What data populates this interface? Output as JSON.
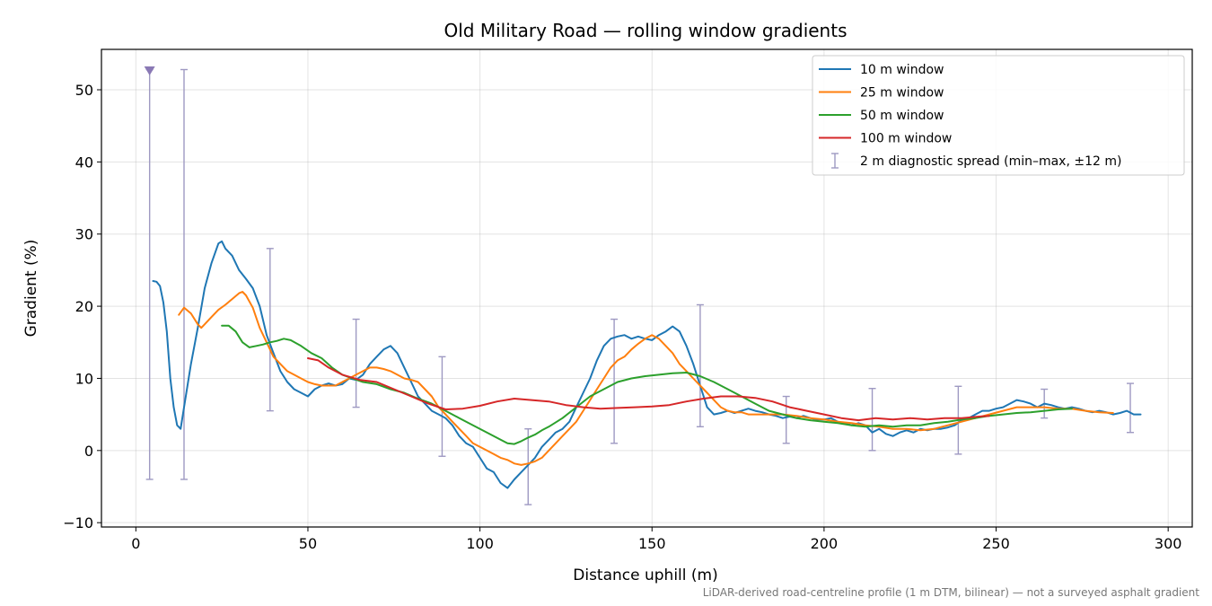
{
  "chart_data": {
    "type": "line",
    "title": "Old Military Road — rolling window gradients",
    "xlabel": "Distance uphill (m)",
    "ylabel": "Gradient (%)",
    "footnote": "LiDAR-derived road-centreline profile (1 m DTM, bilinear) — not a surveyed asphalt gradient",
    "xlim": [
      -10,
      307
    ],
    "ylim": [
      -10.6,
      55.6
    ],
    "xticks": [
      0,
      50,
      100,
      150,
      200,
      250,
      300
    ],
    "xtick_labels": [
      "0",
      "50",
      "100",
      "150",
      "200",
      "250",
      "300"
    ],
    "yticks": [
      -10,
      0,
      10,
      20,
      30,
      40,
      50
    ],
    "ytick_labels": [
      "−10",
      "0",
      "10",
      "20",
      "30",
      "40",
      "50"
    ],
    "grid": true,
    "legend_position": "top-right",
    "series": [
      {
        "name": "10 m window",
        "color": "#1f77b4",
        "x": [
          5,
          6,
          7,
          8,
          9,
          10,
          11,
          12,
          13,
          14,
          16,
          18,
          20,
          22,
          24,
          25,
          26,
          28,
          30,
          32,
          34,
          36,
          38,
          40,
          42,
          44,
          46,
          48,
          50,
          52,
          54,
          56,
          58,
          60,
          62,
          64,
          66,
          68,
          70,
          72,
          74,
          76,
          78,
          80,
          82,
          84,
          86,
          88,
          90,
          92,
          94,
          96,
          98,
          100,
          102,
          104,
          106,
          108,
          110,
          112,
          114,
          116,
          118,
          120,
          122,
          124,
          126,
          128,
          130,
          132,
          134,
          136,
          138,
          140,
          142,
          144,
          146,
          148,
          150,
          152,
          154,
          156,
          158,
          160,
          162,
          164,
          166,
          168,
          170,
          172,
          174,
          176,
          178,
          180,
          182,
          184,
          186,
          188,
          190,
          192,
          194,
          196,
          198,
          200,
          202,
          204,
          206,
          208,
          210,
          212,
          214,
          216,
          218,
          220,
          222,
          224,
          226,
          228,
          230,
          232,
          234,
          236,
          238,
          240,
          242,
          244,
          246,
          248,
          250,
          252,
          254,
          256,
          258,
          260,
          262,
          264,
          266,
          268,
          270,
          272,
          274,
          276,
          278,
          280,
          282,
          284,
          286,
          288,
          290,
          292
        ],
        "values": [
          23.5,
          23.4,
          22.8,
          20.5,
          16.5,
          10.0,
          6.0,
          3.5,
          3.0,
          6.0,
          12.0,
          17.0,
          22.5,
          26.0,
          28.7,
          29.0,
          28.0,
          27.0,
          25.0,
          23.8,
          22.5,
          20.0,
          16.0,
          13.5,
          11.0,
          9.5,
          8.5,
          8.0,
          7.5,
          8.5,
          9.0,
          9.3,
          9.0,
          9.2,
          10.0,
          9.8,
          10.5,
          12.0,
          13.0,
          14.0,
          14.5,
          13.5,
          11.5,
          9.5,
          7.5,
          6.5,
          5.5,
          5.0,
          4.5,
          3.5,
          2.0,
          1.0,
          0.5,
          -1.0,
          -2.5,
          -3.0,
          -4.5,
          -5.2,
          -4.0,
          -3.0,
          -2.0,
          -1.0,
          0.5,
          1.5,
          2.5,
          3.0,
          4.0,
          6.0,
          8.0,
          10.0,
          12.5,
          14.5,
          15.5,
          15.8,
          16.0,
          15.5,
          15.8,
          15.5,
          15.3,
          16.0,
          16.5,
          17.2,
          16.5,
          14.5,
          12.0,
          9.0,
          6.0,
          5.0,
          5.2,
          5.5,
          5.2,
          5.5,
          5.8,
          5.5,
          5.3,
          5.0,
          4.8,
          4.5,
          4.7,
          4.5,
          4.8,
          4.5,
          4.3,
          4.3,
          4.5,
          4.0,
          3.8,
          3.5,
          3.8,
          3.5,
          2.5,
          3.0,
          2.3,
          2.0,
          2.5,
          2.8,
          2.5,
          3.0,
          2.8,
          3.0,
          3.0,
          3.2,
          3.5,
          4.2,
          4.5,
          5.0,
          5.5,
          5.5,
          5.8,
          6.0,
          6.5,
          7.0,
          6.8,
          6.5,
          6.0,
          6.5,
          6.3,
          6.0,
          5.8,
          6.0,
          5.8,
          5.5,
          5.3,
          5.5,
          5.3,
          5.0,
          5.2,
          5.5,
          5.0,
          5.0
        ]
      },
      {
        "name": "25 m window",
        "color": "#ff7f0e",
        "x": [
          12.5,
          14,
          16,
          18,
          19,
          20,
          22,
          24,
          26,
          28,
          30,
          31,
          32,
          34,
          36,
          38,
          40,
          42,
          44,
          46,
          48,
          50,
          52,
          54,
          56,
          58,
          60,
          62,
          64,
          66,
          68,
          70,
          72,
          74,
          76,
          78,
          80,
          82,
          84,
          86,
          88,
          90,
          92,
          94,
          96,
          98,
          100,
          102,
          104,
          106,
          108,
          110,
          112,
          114,
          116,
          118,
          120,
          122,
          124,
          126,
          128,
          130,
          132,
          134,
          136,
          138,
          140,
          142,
          144,
          146,
          148,
          150,
          152,
          154,
          156,
          158,
          160,
          162,
          164,
          166,
          168,
          170,
          172,
          174,
          176,
          178,
          180,
          184,
          188,
          192,
          196,
          200,
          204,
          208,
          212,
          216,
          220,
          224,
          228,
          232,
          236,
          240,
          244,
          248,
          252,
          256,
          260,
          264,
          268,
          272,
          276,
          280,
          284
        ],
        "values": [
          18.8,
          19.8,
          19.0,
          17.5,
          17.0,
          17.5,
          18.5,
          19.5,
          20.2,
          21.0,
          21.8,
          22.0,
          21.5,
          19.8,
          17.0,
          15.0,
          13.0,
          12.0,
          11.0,
          10.5,
          10.0,
          9.5,
          9.2,
          9.0,
          9.0,
          9.0,
          9.5,
          10.0,
          10.5,
          11.0,
          11.5,
          11.5,
          11.3,
          11.0,
          10.5,
          10.0,
          9.8,
          9.5,
          8.5,
          7.5,
          6.0,
          5.0,
          4.0,
          3.0,
          2.0,
          1.0,
          0.5,
          0.0,
          -0.5,
          -1.0,
          -1.3,
          -1.8,
          -2.0,
          -1.8,
          -1.5,
          -1.0,
          0.0,
          1.0,
          2.0,
          3.0,
          4.0,
          5.5,
          7.0,
          8.5,
          10.0,
          11.5,
          12.5,
          13.0,
          14.0,
          14.8,
          15.5,
          16.0,
          15.5,
          14.5,
          13.5,
          12.0,
          11.0,
          10.0,
          9.0,
          8.0,
          7.0,
          6.0,
          5.5,
          5.3,
          5.3,
          5.0,
          5.0,
          5.0,
          5.0,
          4.8,
          4.5,
          4.3,
          4.0,
          3.8,
          3.5,
          3.3,
          3.0,
          3.0,
          2.8,
          3.0,
          3.5,
          4.0,
          4.5,
          5.0,
          5.5,
          6.0,
          6.0,
          6.0,
          5.8,
          5.8,
          5.5,
          5.3,
          5.2
        ]
      },
      {
        "name": "50 m window",
        "color": "#2ca02c",
        "x": [
          25,
          27,
          29,
          31,
          33,
          35,
          37,
          39,
          41,
          43,
          45,
          48,
          51,
          54,
          57,
          60,
          63,
          66,
          70,
          74,
          78,
          82,
          86,
          90,
          94,
          98,
          102,
          106,
          108,
          110,
          112,
          114,
          116,
          118,
          120,
          124,
          128,
          132,
          136,
          140,
          144,
          148,
          152,
          156,
          160,
          164,
          168,
          172,
          176,
          180,
          184,
          188,
          192,
          196,
          200,
          204,
          208,
          212,
          216,
          220,
          224,
          228,
          232,
          236,
          240,
          244,
          248,
          252,
          256,
          260,
          264,
          268,
          272
        ],
        "values": [
          17.3,
          17.3,
          16.5,
          15.0,
          14.3,
          14.5,
          14.7,
          15.0,
          15.2,
          15.5,
          15.3,
          14.5,
          13.5,
          12.8,
          11.5,
          10.5,
          10.0,
          9.5,
          9.2,
          8.5,
          8.0,
          7.2,
          6.5,
          5.5,
          4.5,
          3.5,
          2.5,
          1.5,
          1.0,
          0.9,
          1.3,
          1.8,
          2.2,
          2.8,
          3.3,
          4.5,
          6.0,
          7.5,
          8.5,
          9.5,
          10.0,
          10.3,
          10.5,
          10.7,
          10.8,
          10.3,
          9.5,
          8.5,
          7.5,
          6.5,
          5.5,
          5.0,
          4.5,
          4.2,
          4.0,
          3.8,
          3.5,
          3.3,
          3.5,
          3.3,
          3.5,
          3.5,
          3.8,
          4.0,
          4.3,
          4.5,
          4.8,
          5.0,
          5.2,
          5.3,
          5.5,
          5.7,
          5.8
        ]
      },
      {
        "name": "100 m window",
        "color": "#d62728",
        "x": [
          50,
          53,
          56,
          60,
          65,
          70,
          75,
          80,
          85,
          90,
          95,
          100,
          105,
          110,
          115,
          120,
          125,
          130,
          135,
          140,
          145,
          150,
          155,
          160,
          165,
          170,
          175,
          180,
          185,
          190,
          195,
          200,
          205,
          210,
          215,
          220,
          225,
          230,
          235,
          240,
          245,
          248
        ],
        "values": [
          12.8,
          12.5,
          11.5,
          10.5,
          9.8,
          9.5,
          8.5,
          7.5,
          6.5,
          5.7,
          5.8,
          6.2,
          6.8,
          7.2,
          7.0,
          6.8,
          6.3,
          6.0,
          5.8,
          5.9,
          6.0,
          6.1,
          6.3,
          6.8,
          7.2,
          7.5,
          7.5,
          7.3,
          6.8,
          6.0,
          5.5,
          5.0,
          4.5,
          4.2,
          4.5,
          4.3,
          4.5,
          4.3,
          4.5,
          4.5,
          4.7,
          4.8
        ]
      }
    ],
    "diagnostic": {
      "name": "2 m diagnostic spread (min–max, ±12 m)",
      "color": "#9e99c2",
      "x": [
        4,
        14,
        39,
        64,
        89,
        114,
        139,
        164,
        189,
        214,
        239,
        264,
        289
      ],
      "min": [
        -4.0,
        -4.0,
        5.5,
        6.0,
        -0.8,
        -7.5,
        1.0,
        3.3,
        1.0,
        0.0,
        -0.5,
        4.5,
        2.5
      ],
      "max": [
        52.8,
        52.8,
        28.0,
        18.2,
        13.0,
        3.0,
        18.2,
        20.2,
        7.5,
        8.6,
        8.9,
        8.5,
        9.3
      ],
      "clipped_marker_x": 4
    }
  }
}
